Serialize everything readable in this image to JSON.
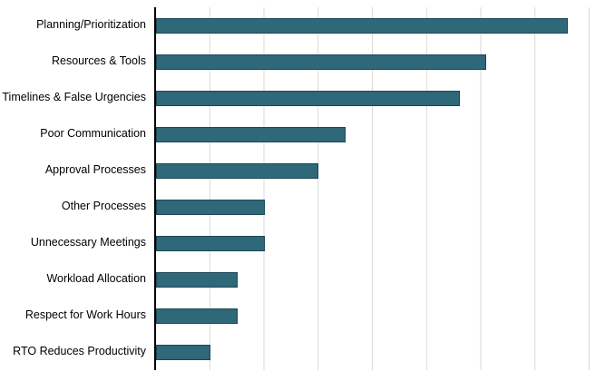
{
  "chart_data": {
    "type": "bar",
    "orientation": "horizontal",
    "title": "",
    "xlabel": "",
    "ylabel": "",
    "categories": [
      "Planning/Prioritization",
      "Resources & Tools",
      "Timelines & False Urgencies",
      "Poor Communication",
      "Approval Processes",
      "Other Processes",
      "Unnecessary Meetings",
      "Workload Allocation",
      "Respect for Work Hours",
      "RTO Reduces Productivity"
    ],
    "values": [
      76,
      61,
      56,
      35,
      30,
      20,
      20,
      15,
      15,
      10
    ],
    "xlim": [
      0,
      80
    ],
    "gridline_interval": 10,
    "grid": true,
    "legend": false,
    "bar_color": "#2e6879",
    "gridline_color": "#d9d9d9",
    "axis_color": "#000000"
  }
}
